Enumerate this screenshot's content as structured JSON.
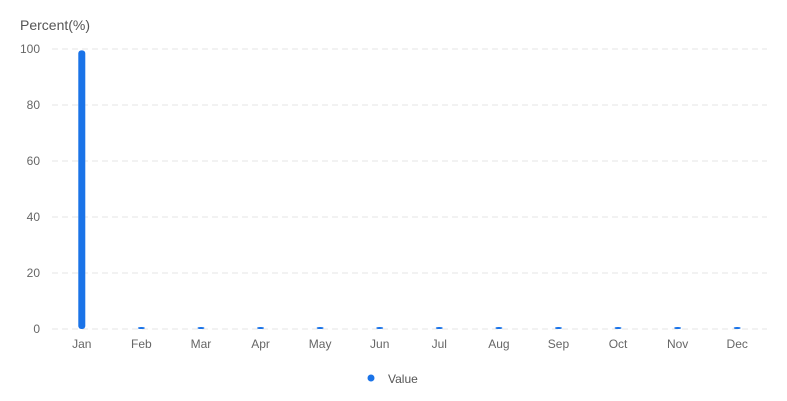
{
  "chart_data": {
    "type": "bar",
    "ylabel": "Percent(%)",
    "categories": [
      "Jan",
      "Feb",
      "Mar",
      "Apr",
      "May",
      "Jun",
      "Jul",
      "Aug",
      "Sep",
      "Oct",
      "Nov",
      "Dec"
    ],
    "series": [
      {
        "name": "Value",
        "color": "#1a73e8",
        "values": [
          99.5,
          0,
          0,
          0,
          0,
          0,
          0,
          0,
          0,
          0,
          0,
          0
        ]
      }
    ],
    "ylim": [
      0,
      100
    ],
    "yticks": [
      0,
      20,
      40,
      60,
      80,
      100
    ],
    "grid": true,
    "legend": "bottom-center"
  }
}
